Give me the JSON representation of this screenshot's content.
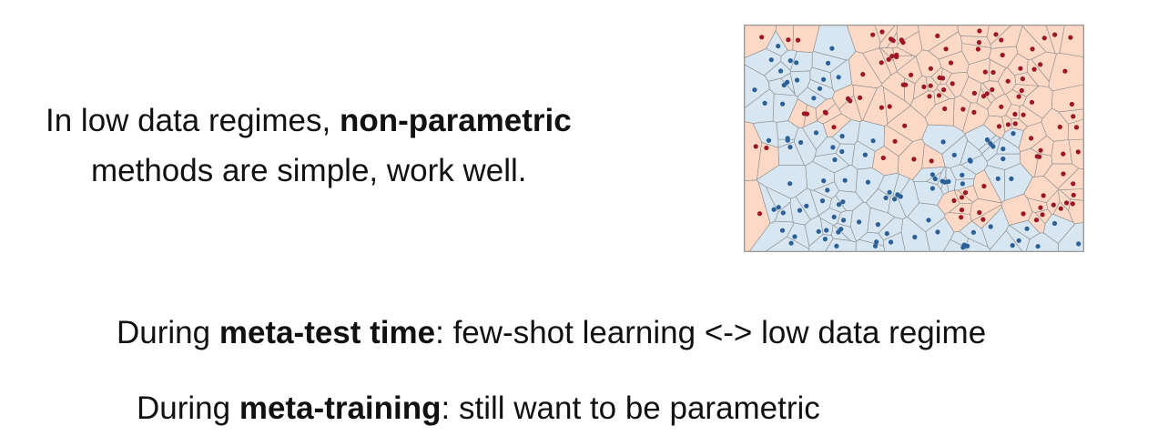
{
  "slide": {
    "line1": {
      "prefix": "In low data regimes, ",
      "bold": "non-parametric"
    },
    "line2": {
      "text": "methods are simple, work well."
    },
    "line3": {
      "prefix": "During ",
      "bold": "meta-test time",
      "suffix": ": few-shot learning <-> low data regime"
    },
    "line4": {
      "prefix": "During ",
      "bold": "meta-training",
      "suffix": ": still want to be parametric"
    }
  },
  "figure": {
    "colors": {
      "class_a_region": "#fcd9c6",
      "class_b_region": "#d7e6f1",
      "class_a_point": "#9b1725",
      "class_b_point": "#2a5f97",
      "edge": "#8b8b8b",
      "border": "#999999"
    }
  }
}
